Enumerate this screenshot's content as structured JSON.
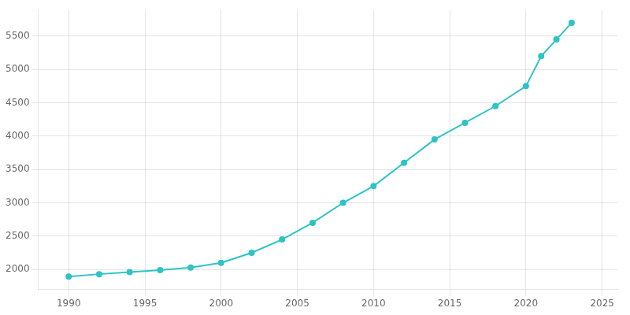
{
  "chart_data": {
    "type": "line",
    "x": [
      1990,
      1992,
      1994,
      1996,
      1998,
      2000,
      2002,
      2004,
      2006,
      2008,
      2010,
      2012,
      2014,
      2016,
      2018,
      2020,
      2021,
      2022,
      2023
    ],
    "values": [
      1893,
      1930,
      1960,
      1990,
      2030,
      2100,
      2250,
      2450,
      2700,
      3000,
      3250,
      3600,
      3950,
      4200,
      4450,
      4750,
      5200,
      5450,
      5700
    ],
    "color": "#2EC4C4",
    "marker": "circle",
    "xlim": [
      1988,
      2026
    ],
    "ylim": [
      1700,
      5900
    ],
    "xticks": [
      1990,
      1995,
      2000,
      2005,
      2010,
      2015,
      2020,
      2025
    ],
    "yticks": [
      2000,
      2500,
      3000,
      3500,
      4000,
      4500,
      5000,
      5500
    ],
    "grid": true
  }
}
